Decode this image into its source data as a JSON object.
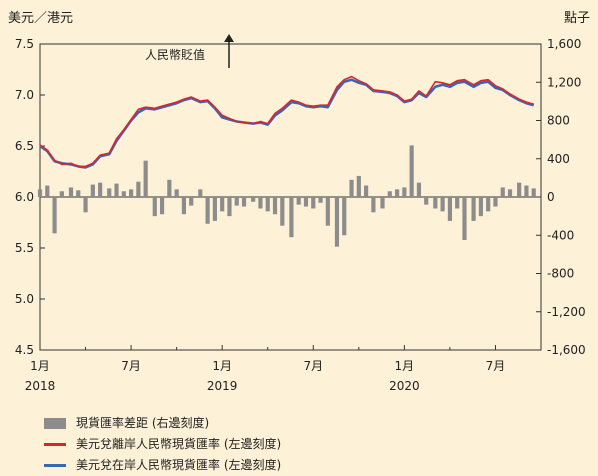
{
  "chart_data": {
    "type": "line",
    "left_axis": {
      "label": "美元／港元",
      "ylim": [
        4.5,
        7.5
      ],
      "ticks": [
        "4.5",
        "5.0",
        "5.5",
        "6.0",
        "6.5",
        "7.0",
        "7.5"
      ]
    },
    "right_axis": {
      "label": "點子",
      "ylim": [
        -1600,
        1600
      ],
      "ticks": [
        "-1,600",
        "-1,200",
        "-800",
        "-400",
        "0",
        "400",
        "800",
        "1,200",
        "1,600"
      ]
    },
    "x_tick_labels": [
      "1月",
      "7月",
      "1月",
      "7月",
      "1月",
      "7月"
    ],
    "x_year_labels": [
      "2018",
      "2019",
      "2020"
    ],
    "annotation": "人民幣貶值",
    "series": [
      {
        "name": "美元兌在岸人民幣現貨匯率 (左邊刻度)",
        "axis": "left",
        "color": "#3a67b5",
        "x": [
          2018.0,
          2018.04,
          2018.08,
          2018.12,
          2018.17,
          2018.21,
          2018.25,
          2018.29,
          2018.33,
          2018.38,
          2018.42,
          2018.46,
          2018.5,
          2018.54,
          2018.58,
          2018.63,
          2018.67,
          2018.71,
          2018.75,
          2018.79,
          2018.83,
          2018.88,
          2018.92,
          2018.96,
          2019.0,
          2019.04,
          2019.08,
          2019.12,
          2019.17,
          2019.21,
          2019.25,
          2019.29,
          2019.33,
          2019.38,
          2019.42,
          2019.46,
          2019.5,
          2019.54,
          2019.58,
          2019.63,
          2019.67,
          2019.71,
          2019.75,
          2019.79,
          2019.83,
          2019.88,
          2019.92,
          2019.96,
          2020.0,
          2020.04,
          2020.08,
          2020.12,
          2020.17,
          2020.21,
          2020.25,
          2020.29,
          2020.33,
          2020.38,
          2020.42,
          2020.46,
          2020.5,
          2020.54,
          2020.58,
          2020.63,
          2020.67,
          2020.71
        ],
        "values": [
          6.5,
          6.45,
          6.35,
          6.33,
          6.32,
          6.3,
          6.29,
          6.32,
          6.4,
          6.42,
          6.55,
          6.65,
          6.75,
          6.83,
          6.87,
          6.86,
          6.88,
          6.9,
          6.92,
          6.95,
          6.97,
          6.93,
          6.94,
          6.87,
          6.78,
          6.76,
          6.74,
          6.73,
          6.72,
          6.73,
          6.71,
          6.8,
          6.85,
          6.93,
          6.92,
          6.89,
          6.88,
          6.89,
          6.88,
          7.05,
          7.13,
          7.15,
          7.12,
          7.1,
          7.04,
          7.03,
          7.02,
          6.99,
          6.93,
          6.95,
          7.02,
          6.98,
          7.08,
          7.1,
          7.08,
          7.12,
          7.13,
          7.08,
          7.12,
          7.13,
          7.07,
          7.05,
          7.0,
          6.95,
          6.92,
          6.9
        ]
      },
      {
        "name": "美元兌離岸人民幣現貨匯率 (左邊刻度)",
        "axis": "left",
        "color": "#d9262c",
        "x": [
          2018.0,
          2018.04,
          2018.08,
          2018.12,
          2018.17,
          2018.21,
          2018.25,
          2018.29,
          2018.33,
          2018.38,
          2018.42,
          2018.46,
          2018.5,
          2018.54,
          2018.58,
          2018.63,
          2018.67,
          2018.71,
          2018.75,
          2018.79,
          2018.83,
          2018.88,
          2018.92,
          2018.96,
          2019.0,
          2019.04,
          2019.08,
          2019.12,
          2019.17,
          2019.21,
          2019.25,
          2019.29,
          2019.33,
          2019.38,
          2019.42,
          2019.46,
          2019.5,
          2019.54,
          2019.58,
          2019.63,
          2019.67,
          2019.71,
          2019.75,
          2019.79,
          2019.83,
          2019.88,
          2019.92,
          2019.96,
          2020.0,
          2020.04,
          2020.08,
          2020.12,
          2020.17,
          2020.21,
          2020.25,
          2020.29,
          2020.33,
          2020.38,
          2020.42,
          2020.46,
          2020.5,
          2020.54,
          2020.58,
          2020.63,
          2020.67,
          2020.71
        ],
        "values": [
          6.51,
          6.46,
          6.36,
          6.32,
          6.33,
          6.3,
          6.3,
          6.33,
          6.41,
          6.43,
          6.57,
          6.66,
          6.76,
          6.86,
          6.88,
          6.87,
          6.89,
          6.91,
          6.93,
          6.96,
          6.98,
          6.94,
          6.95,
          6.88,
          6.8,
          6.77,
          6.74,
          6.73,
          6.72,
          6.74,
          6.72,
          6.82,
          6.87,
          6.95,
          6.93,
          6.9,
          6.89,
          6.9,
          6.9,
          7.08,
          7.15,
          7.18,
          7.14,
          7.11,
          7.05,
          7.04,
          7.03,
          7.0,
          6.94,
          6.96,
          7.04,
          6.99,
          7.13,
          7.12,
          7.1,
          7.14,
          7.15,
          7.1,
          7.14,
          7.15,
          7.09,
          7.06,
          7.01,
          6.96,
          6.93,
          6.91
        ]
      },
      {
        "name": "現貨匯率差距 (右邊刻度)",
        "axis": "right",
        "type": "bar",
        "color": "#8c8c8c",
        "x": [
          2018.0,
          2018.04,
          2018.08,
          2018.12,
          2018.17,
          2018.21,
          2018.25,
          2018.29,
          2018.33,
          2018.38,
          2018.42,
          2018.46,
          2018.5,
          2018.54,
          2018.58,
          2018.63,
          2018.67,
          2018.71,
          2018.75,
          2018.79,
          2018.83,
          2018.88,
          2018.92,
          2018.96,
          2019.0,
          2019.04,
          2019.08,
          2019.12,
          2019.17,
          2019.21,
          2019.25,
          2019.29,
          2019.33,
          2019.38,
          2019.42,
          2019.46,
          2019.5,
          2019.54,
          2019.58,
          2019.63,
          2019.67,
          2019.71,
          2019.75,
          2019.79,
          2019.83,
          2019.88,
          2019.92,
          2019.96,
          2020.0,
          2020.04,
          2020.08,
          2020.12,
          2020.17,
          2020.21,
          2020.25,
          2020.29,
          2020.33,
          2020.38,
          2020.42,
          2020.46,
          2020.5,
          2020.54,
          2020.58,
          2020.63,
          2020.67,
          2020.71
        ],
        "values": [
          80,
          120,
          -380,
          60,
          100,
          70,
          -160,
          130,
          150,
          90,
          140,
          60,
          80,
          160,
          380,
          -200,
          -180,
          180,
          80,
          -180,
          -90,
          80,
          -280,
          -250,
          -150,
          -200,
          -90,
          -100,
          -50,
          -120,
          -150,
          -180,
          -300,
          -420,
          -80,
          -100,
          -120,
          -60,
          -300,
          -520,
          -400,
          180,
          220,
          120,
          -160,
          -120,
          60,
          80,
          100,
          540,
          150,
          -80,
          -120,
          -150,
          -250,
          -120,
          -450,
          -250,
          -200,
          -150,
          -100,
          100,
          80,
          150,
          120,
          90
        ]
      }
    ]
  },
  "legend": [
    {
      "label": "現貨匯率差距 (右邊刻度)",
      "color": "#8c8c8c",
      "kind": "bar"
    },
    {
      "label": "美元兌離岸人民幣現貨匯率 (左邊刻度)",
      "color": "#d9262c",
      "kind": "line"
    },
    {
      "label": "美元兌在岸人民幣現貨匯率 (左邊刻度)",
      "color": "#3a67b5",
      "kind": "line"
    }
  ]
}
